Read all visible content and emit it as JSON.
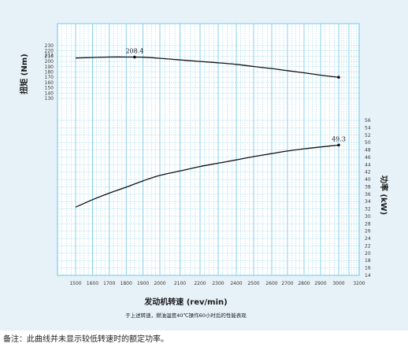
{
  "chart_data": {
    "type": "line",
    "xlabel": "发动机转速 (rev/min)",
    "x_ticks": [
      1500,
      1600,
      1700,
      1800,
      1900,
      2000,
      2100,
      2200,
      2300,
      2400,
      2500,
      2600,
      2700,
      2800,
      2900,
      3000,
      3200
    ],
    "xlim": [
      1400,
      3200
    ],
    "caption": "于上述转速，燃油温度40℃操作60小时后的性能表现",
    "torque_axis": {
      "label": "扭矩 (Nm)",
      "ticks": [
        130,
        140,
        150,
        160,
        170,
        180,
        190,
        200,
        210,
        212,
        220,
        230
      ],
      "ylim": [
        125,
        232
      ]
    },
    "power_axis": {
      "label": "功率 (kW)",
      "ticks": [
        14,
        16,
        18,
        20,
        22,
        24,
        26,
        28,
        30,
        32,
        34,
        36,
        38,
        40,
        42,
        44,
        46,
        48,
        50,
        52,
        54,
        56
      ],
      "ylim": [
        14,
        56
      ]
    },
    "series": [
      {
        "axis": "torque",
        "color": "#111111",
        "points": [
          [
            1500,
            206.5
          ],
          [
            1600,
            207.5
          ],
          [
            1700,
            208.3
          ],
          [
            1800,
            208.4
          ],
          [
            1900,
            208.0
          ],
          [
            2000,
            206.0
          ],
          [
            2100,
            203.0
          ],
          [
            2200,
            200.0
          ],
          [
            2300,
            197.5
          ],
          [
            2400,
            194.5
          ],
          [
            2500,
            190.5
          ],
          [
            2600,
            186.5
          ],
          [
            2700,
            182.5
          ],
          [
            2800,
            178.5
          ],
          [
            2900,
            174.0
          ],
          [
            3000,
            170.0
          ]
        ],
        "markers": [
          1850,
          3000
        ],
        "data_label": {
          "x": 1850,
          "y": 208.4,
          "text": "208.4"
        }
      },
      {
        "axis": "power",
        "color": "#111111",
        "points": [
          [
            1500,
            32.5
          ],
          [
            1600,
            34.5
          ],
          [
            1700,
            36.3
          ],
          [
            1800,
            37.9
          ],
          [
            1900,
            39.6
          ],
          [
            2000,
            41.1
          ],
          [
            2100,
            42.3
          ],
          [
            2200,
            43.5
          ],
          [
            2300,
            44.4
          ],
          [
            2400,
            45.3
          ],
          [
            2500,
            46.2
          ],
          [
            2600,
            47.0
          ],
          [
            2700,
            47.7
          ],
          [
            2800,
            48.3
          ],
          [
            2900,
            48.8
          ],
          [
            3000,
            49.3
          ]
        ],
        "markers": [
          3000
        ],
        "data_label": {
          "x": 3000,
          "y": 49.3,
          "text": "49.3"
        }
      }
    ],
    "grid": true
  },
  "footnote": "备注：此曲线并未显示较低转速时的额定功率。"
}
